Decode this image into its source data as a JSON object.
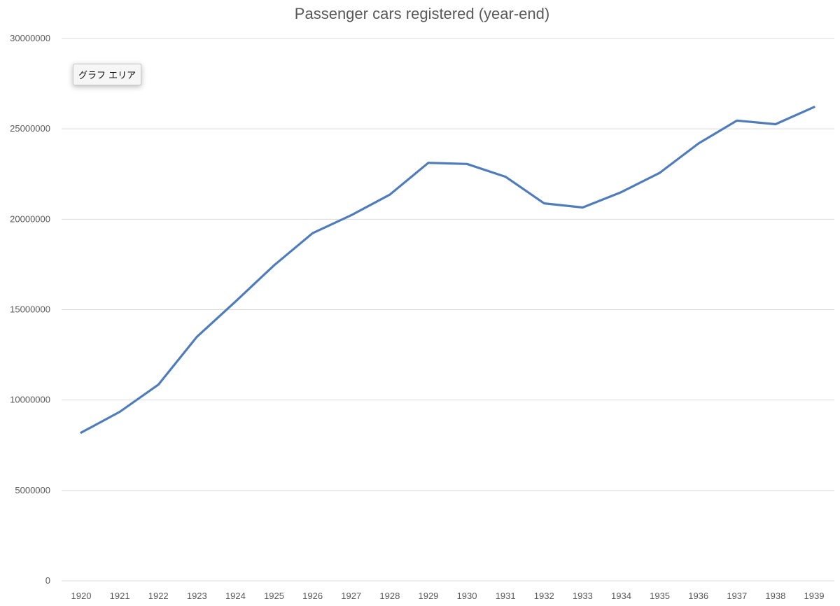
{
  "tooltip": {
    "label": "グラフ エリア"
  },
  "colors": {
    "series": "#4f7cba",
    "grid": "#d9d9d9",
    "text": "#595959"
  },
  "chart_data": {
    "type": "line",
    "title": "Passenger cars registered (year-end)",
    "xlabel": "",
    "ylabel": "",
    "categories": [
      "1920",
      "1921",
      "1922",
      "1923",
      "1924",
      "1925",
      "1926",
      "1927",
      "1928",
      "1929",
      "1930",
      "1931",
      "1932",
      "1933",
      "1934",
      "1935",
      "1936",
      "1937",
      "1938",
      "1939"
    ],
    "series": [
      {
        "values": [
          8200000,
          9350000,
          10850000,
          13500000,
          15450000,
          17450000,
          19230000,
          20220000,
          21360000,
          23120000,
          23060000,
          22350000,
          20880000,
          20650000,
          21500000,
          22570000,
          24190000,
          25460000,
          25260000,
          26210000
        ]
      }
    ],
    "ylim": [
      0,
      30000000
    ],
    "yticks": [
      "0",
      "5000000",
      "10000000",
      "15000000",
      "20000000",
      "25000000",
      "30000000"
    ],
    "grid": true,
    "legend": "none"
  }
}
